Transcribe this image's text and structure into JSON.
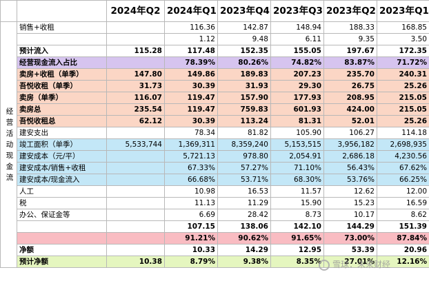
{
  "header": {
    "cols": [
      "",
      "",
      "2024年Q2",
      "2024年Q1",
      "2023年Q4",
      "2023年Q3",
      "2023年Q2",
      "2023年Q1"
    ]
  },
  "side_label": "经营活动现金流",
  "rows": [
    {
      "label": "销售+收租",
      "values": [
        "",
        "116.36",
        "142.87",
        "148.94",
        "188.33",
        "168.85"
      ],
      "bold": false,
      "bg": ""
    },
    {
      "label": "",
      "values": [
        "",
        "1.12",
        "9.48",
        "6.11",
        "9.35",
        "3.50"
      ],
      "bold": false,
      "bg": ""
    },
    {
      "label": "预计流入",
      "values": [
        "115.28",
        "117.48",
        "152.35",
        "155.05",
        "197.67",
        "172.35"
      ],
      "bold": true,
      "bg": ""
    },
    {
      "label": "经营现金流入占比",
      "values": [
        "",
        "78.39%",
        "80.26%",
        "74.82%",
        "83.87%",
        "71.72%"
      ],
      "bold": true,
      "bg": "purple"
    },
    {
      "label": "卖房+收租（单季）",
      "values": [
        "147.80",
        "149.86",
        "189.83",
        "207.23",
        "235.70",
        "240.31"
      ],
      "bold": true,
      "bg": "orange"
    },
    {
      "label": "吾悦收租（单季）",
      "values": [
        "31.73",
        "30.39",
        "31.93",
        "29.30",
        "26.75",
        "25.26"
      ],
      "bold": true,
      "bg": "orange"
    },
    {
      "label": "卖房（单季）",
      "values": [
        "116.07",
        "119.47",
        "157.90",
        "177.93",
        "208.95",
        "215.05"
      ],
      "bold": true,
      "bg": "orange"
    },
    {
      "label": "卖房总",
      "values": [
        "235.54",
        "119.47",
        "759.83",
        "601.93",
        "424.00",
        "215.05"
      ],
      "bold": true,
      "bg": "orange"
    },
    {
      "label": "吾悦收租总",
      "values": [
        "62.12",
        "30.39",
        "113.24",
        "81.31",
        "52.01",
        "25.26"
      ],
      "bold": true,
      "bg": "orange"
    },
    {
      "label": "建安支出",
      "values": [
        "",
        "78.34",
        "81.82",
        "105.90",
        "106.27",
        "114.18"
      ],
      "bold": false,
      "bg": ""
    },
    {
      "label": "竣工面积（单季）",
      "values": [
        "5,533,744",
        "1,369,311",
        "8,359,240",
        "5,153,515",
        "3,956,182",
        "2,698,935"
      ],
      "bold": false,
      "bg": "blue"
    },
    {
      "label": "建安成本（元/平）",
      "values": [
        "",
        "5,721.13",
        "978.80",
        "2,054.91",
        "2,686.18",
        "4,230.56"
      ],
      "bold": false,
      "bg": "blue"
    },
    {
      "label": "建安成本/销售+收租",
      "values": [
        "",
        "67.33%",
        "57.27%",
        "71.10%",
        "56.43%",
        "67.62%"
      ],
      "bold": false,
      "bg": "blue"
    },
    {
      "label": "建安成本/现金流入",
      "values": [
        "",
        "66.68%",
        "53.71%",
        "68.30%",
        "53.76%",
        "66.25%"
      ],
      "bold": false,
      "bg": "blue"
    },
    {
      "label": "人工",
      "values": [
        "",
        "10.98",
        "16.53",
        "11.57",
        "12.62",
        "12.00"
      ],
      "bold": false,
      "bg": ""
    },
    {
      "label": "税",
      "values": [
        "",
        "11.13",
        "11.29",
        "15.90",
        "15.23",
        "16.59"
      ],
      "bold": false,
      "bg": ""
    },
    {
      "label": "办公、保证金等",
      "values": [
        "",
        "6.69",
        "28.42",
        "8.73",
        "10.17",
        "8.62"
      ],
      "bold": false,
      "bg": ""
    },
    {
      "label": "",
      "values": [
        "",
        "107.15",
        "138.06",
        "142.10",
        "144.29",
        "151.39"
      ],
      "bold": true,
      "bg": ""
    },
    {
      "label": "",
      "values": [
        "",
        "91.21%",
        "90.62%",
        "91.65%",
        "73.00%",
        "87.84%"
      ],
      "bold": true,
      "bg": "red"
    },
    {
      "label": "净额",
      "values": [
        "",
        "10.33",
        "14.29",
        "12.95",
        "53.39",
        "20.96"
      ],
      "bold": true,
      "bg": ""
    },
    {
      "label": "预计净额",
      "values": [
        "10.38",
        "8.79%",
        "9.38%",
        "8.35%",
        "27.01%",
        "12.16%"
      ],
      "bold": true,
      "bg": "green"
    }
  ],
  "watermark": "雪球：未来财经",
  "colors": {
    "purple": "#d6c4ef",
    "orange": "#fbd6c5",
    "blue": "#c3e7f7",
    "red": "#f9bcc2",
    "green": "#e5f6bf"
  }
}
